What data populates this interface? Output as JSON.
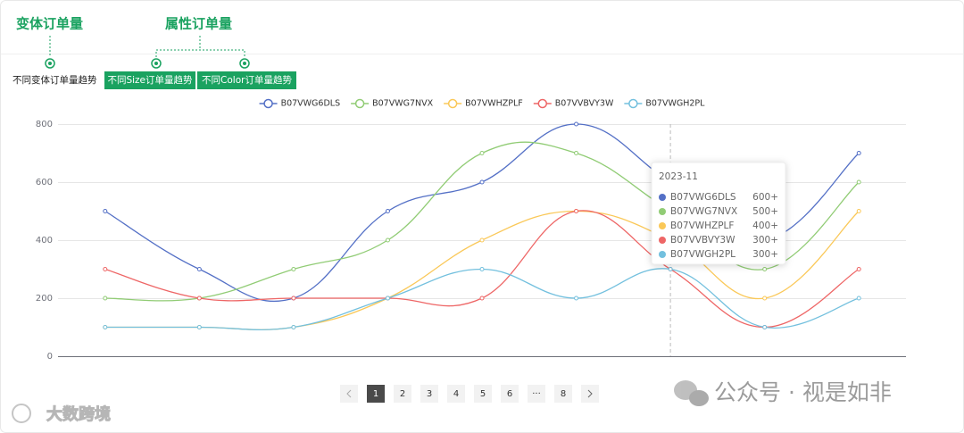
{
  "header": {
    "labels": [
      "变体订单量",
      "属性订单量"
    ],
    "tabs": [
      "不同变体订单量趋势",
      "不同Size订单量趋势",
      "不同Color订单量趋势"
    ]
  },
  "chart_data": {
    "type": "line",
    "smooth": true,
    "categories": [
      null,
      null,
      null,
      null,
      null,
      null,
      null,
      null,
      null
    ],
    "series": [
      {
        "name": "B07VWG6DLS",
        "color": "#5470c6",
        "values": [
          500,
          300,
          200,
          500,
          600,
          800,
          600,
          400,
          700
        ]
      },
      {
        "name": "B07VWG7NVX",
        "color": "#91cc75",
        "values": [
          200,
          200,
          300,
          400,
          700,
          700,
          500,
          300,
          600
        ]
      },
      {
        "name": "B07VWHZPLF",
        "color": "#fac858",
        "values": [
          100,
          100,
          100,
          200,
          400,
          500,
          400,
          200,
          500
        ]
      },
      {
        "name": "B07VVBVY3W",
        "color": "#ee6666",
        "values": [
          300,
          200,
          200,
          200,
          200,
          500,
          300,
          100,
          300
        ]
      },
      {
        "name": "B07VWGH2PL",
        "color": "#73c0de",
        "values": [
          100,
          100,
          100,
          200,
          300,
          200,
          300,
          100,
          200
        ]
      }
    ],
    "ylim": [
      0,
      800
    ],
    "yticks": [
      0,
      200,
      400,
      600,
      800
    ],
    "grid": true,
    "legend": "top",
    "tooltip": {
      "index": 6,
      "title": "2023-11",
      "value_labels": [
        "600+",
        "500+",
        "400+",
        "300+",
        "300+"
      ]
    }
  },
  "pagination": {
    "pages": [
      "1",
      "2",
      "3",
      "4",
      "5",
      "6",
      "···",
      "8"
    ],
    "current": 0
  },
  "watermark": {
    "account": "公众号 · 视是如非",
    "brand": "大数跨境"
  }
}
